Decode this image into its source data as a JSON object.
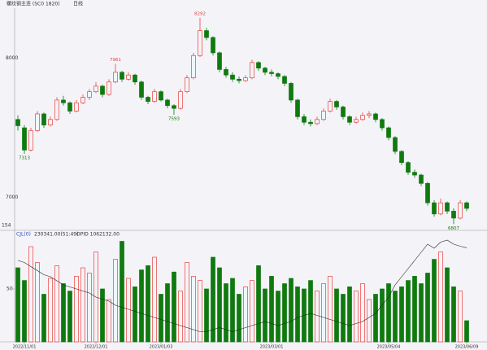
{
  "chart_data": {
    "type": "candlestick",
    "title": "螺纹钢主连 (SC0 1820)",
    "period": "日线",
    "ylim": [
      6750,
      8350
    ],
    "yticks": [
      7000,
      8000
    ],
    "xticks": [
      {
        "value": 1,
        "label": "2022/11/01"
      },
      {
        "value": 12,
        "label": "2022/12/01"
      },
      {
        "value": 22,
        "label": "2023/01/03"
      },
      {
        "value": 39,
        "label": "2023/03/01"
      },
      {
        "value": 57,
        "label": "2023/05/04"
      },
      {
        "value": 69,
        "label": "2023/06/09"
      }
    ],
    "up_color": "#e8413c",
    "down_color": "#0f7a0f",
    "open": [
      7560,
      7500,
      7340,
      7480,
      7600,
      7520,
      7560,
      7700,
      7680,
      7620,
      7680,
      7720,
      7760,
      7800,
      7740,
      7830,
      7900,
      7850,
      7880,
      7830,
      7720,
      7690,
      7760,
      7700,
      7660,
      7640,
      7760,
      7860,
      8020,
      8200,
      8150,
      8040,
      7920,
      7880,
      7850,
      7840,
      7860,
      7970,
      7930,
      7900,
      7890,
      7870,
      7820,
      7700,
      7580,
      7540,
      7530,
      7560,
      7620,
      7690,
      7650,
      7580,
      7540,
      7560,
      7590,
      7600,
      7560,
      7500,
      7430,
      7330,
      7250,
      7180,
      7160,
      7100,
      6960,
      6880,
      6960,
      6900,
      6850,
      6960
    ],
    "high": [
      7590,
      7520,
      7500,
      7620,
      7610,
      7580,
      7720,
      7730,
      7690,
      7700,
      7740,
      7780,
      7830,
      7810,
      7850,
      7961,
      7910,
      7900,
      7890,
      7840,
      7730,
      7780,
      7770,
      7710,
      7670,
      7780,
      7880,
      8040,
      8292,
      8220,
      8160,
      8050,
      7940,
      7900,
      7870,
      7880,
      7990,
      7980,
      7940,
      7920,
      7900,
      7880,
      7830,
      7710,
      7600,
      7560,
      7580,
      7640,
      7710,
      7700,
      7660,
      7590,
      7580,
      7610,
      7620,
      7610,
      7570,
      7510,
      7440,
      7340,
      7260,
      7200,
      7170,
      7110,
      6980,
      6990,
      6970,
      6920,
      6980,
      6970
    ],
    "low": [
      7480,
      7313,
      7330,
      7470,
      7500,
      7510,
      7550,
      7660,
      7600,
      7610,
      7670,
      7700,
      7750,
      7720,
      7730,
      7820,
      7830,
      7840,
      7810,
      7700,
      7670,
      7680,
      7690,
      7640,
      7593,
      7630,
      7750,
      7850,
      8010,
      8130,
      8020,
      7900,
      7860,
      7830,
      7820,
      7830,
      7850,
      7910,
      7880,
      7870,
      7850,
      7800,
      7680,
      7560,
      7520,
      7510,
      7520,
      7550,
      7610,
      7630,
      7560,
      7520,
      7530,
      7550,
      7570,
      7540,
      7480,
      7410,
      7310,
      7230,
      7160,
      7140,
      7080,
      6940,
      6860,
      6870,
      6880,
      6807,
      6840,
      6900
    ],
    "close": [
      7515,
      7340,
      7480,
      7600,
      7520,
      7560,
      7700,
      7680,
      7620,
      7680,
      7720,
      7760,
      7800,
      7740,
      7830,
      7900,
      7850,
      7880,
      7830,
      7720,
      7690,
      7760,
      7700,
      7660,
      7640,
      7760,
      7860,
      8020,
      8200,
      8150,
      8040,
      7920,
      7880,
      7850,
      7840,
      7860,
      7970,
      7930,
      7900,
      7890,
      7870,
      7820,
      7700,
      7580,
      7540,
      7530,
      7560,
      7620,
      7690,
      7650,
      7580,
      7540,
      7560,
      7590,
      7600,
      7560,
      7500,
      7430,
      7330,
      7250,
      7180,
      7160,
      7100,
      6960,
      6880,
      6960,
      6900,
      6850,
      6960,
      6920
    ],
    "high_labels": [
      7961,
      8292
    ],
    "low_labels": [
      7313,
      7593,
      6807
    ],
    "cursor_label": "154",
    "volume_header": [
      "CJL(0)",
      "230341.00(51:49)",
      "OPID 1062132.00"
    ],
    "volume": [
      70,
      58,
      90,
      75,
      45,
      60,
      72,
      55,
      48,
      62,
      70,
      65,
      85,
      50,
      40,
      78,
      95,
      60,
      52,
      68,
      72,
      80,
      45,
      55,
      66,
      48,
      75,
      62,
      58,
      50,
      80,
      70,
      55,
      60,
      45,
      52,
      58,
      72,
      50,
      62,
      48,
      55,
      60,
      52,
      50,
      58,
      48,
      55,
      62,
      50,
      45,
      52,
      48,
      55,
      40,
      45,
      50,
      55,
      48,
      52,
      58,
      62,
      55,
      65,
      78,
      85,
      70,
      52,
      48,
      20
    ],
    "volume_ylim": [
      0,
      100
    ],
    "volume_yticks": [
      50
    ],
    "opi": [
      1000000,
      990000,
      970000,
      950000,
      930000,
      920000,
      900000,
      880000,
      870000,
      860000,
      850000,
      840000,
      820000,
      810000,
      800000,
      780000,
      770000,
      760000,
      750000,
      740000,
      730000,
      720000,
      710000,
      700000,
      690000,
      680000,
      670000,
      660000,
      650000,
      650000,
      660000,
      670000,
      660000,
      650000,
      660000,
      670000,
      680000,
      690000,
      700000,
      690000,
      680000,
      690000,
      700000,
      720000,
      730000,
      740000,
      730000,
      720000,
      710000,
      700000,
      690000,
      680000,
      690000,
      700000,
      720000,
      740000,
      780000,
      820000,
      880000,
      920000,
      960000,
      1000000,
      1040000,
      1080000,
      1060000,
      1090000,
      1100000,
      1080000,
      1070000,
      1062132
    ],
    "opi_lim": [
      600000,
      1120000
    ],
    "opi_color": "#222222"
  }
}
